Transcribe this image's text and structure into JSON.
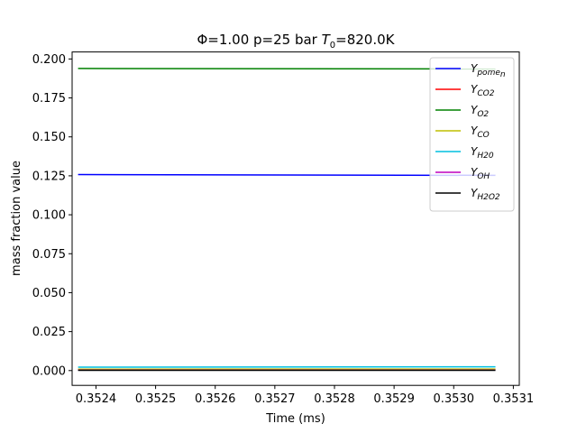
{
  "chart_data": {
    "type": "line",
    "title_parts": [
      "Φ=1.00 p=25 bar ",
      "T",
      "0",
      "=820.0K"
    ],
    "xlabel": "Time (ms)",
    "ylabel": "mass fraction value",
    "xlim": [
      0.35236,
      0.35311
    ],
    "ylim": [
      -0.0095,
      0.2045
    ],
    "xticks": [
      0.3524,
      0.3525,
      0.3526,
      0.3527,
      0.3528,
      0.3529,
      0.353,
      0.3531
    ],
    "xtick_labels": [
      "0.3524",
      "0.3525",
      "0.3526",
      "0.3527",
      "0.3528",
      "0.3529",
      "0.3530",
      "0.3531"
    ],
    "yticks": [
      0.0,
      0.025,
      0.05,
      0.075,
      0.1,
      0.125,
      0.15,
      0.175,
      0.2
    ],
    "ytick_labels": [
      "0.000",
      "0.025",
      "0.050",
      "0.075",
      "0.100",
      "0.125",
      "0.150",
      "0.175",
      "0.200"
    ],
    "grid": false,
    "legend_position": "top-right",
    "x": [
      0.35237,
      0.35307
    ],
    "series": [
      {
        "name_main": "Y",
        "name_sub": "pome",
        "name_subsub": "n",
        "color": "#0000ff",
        "values": [
          0.1258,
          0.1253
        ]
      },
      {
        "name_main": "Y",
        "name_sub": "CO2",
        "name_subsub": "",
        "color": "#ff0000",
        "values": [
          0.0006,
          0.0007
        ]
      },
      {
        "name_main": "Y",
        "name_sub": "O2",
        "name_subsub": "",
        "color": "#008000",
        "values": [
          0.1939,
          0.1936
        ]
      },
      {
        "name_main": "Y",
        "name_sub": "CO",
        "name_subsub": "",
        "color": "#bfbf00",
        "values": [
          0.0009,
          0.001
        ]
      },
      {
        "name_main": "Y",
        "name_sub": "H20",
        "name_subsub": "",
        "color": "#00bfdf",
        "values": [
          0.0022,
          0.0024
        ]
      },
      {
        "name_main": "Y",
        "name_sub": "OH",
        "name_subsub": "",
        "color": "#bf00bf",
        "values": [
          0.0003,
          0.0003
        ]
      },
      {
        "name_main": "Y",
        "name_sub": "H2O2",
        "name_subsub": "",
        "color": "#000000",
        "values": [
          0.0002,
          0.0002
        ]
      }
    ]
  }
}
